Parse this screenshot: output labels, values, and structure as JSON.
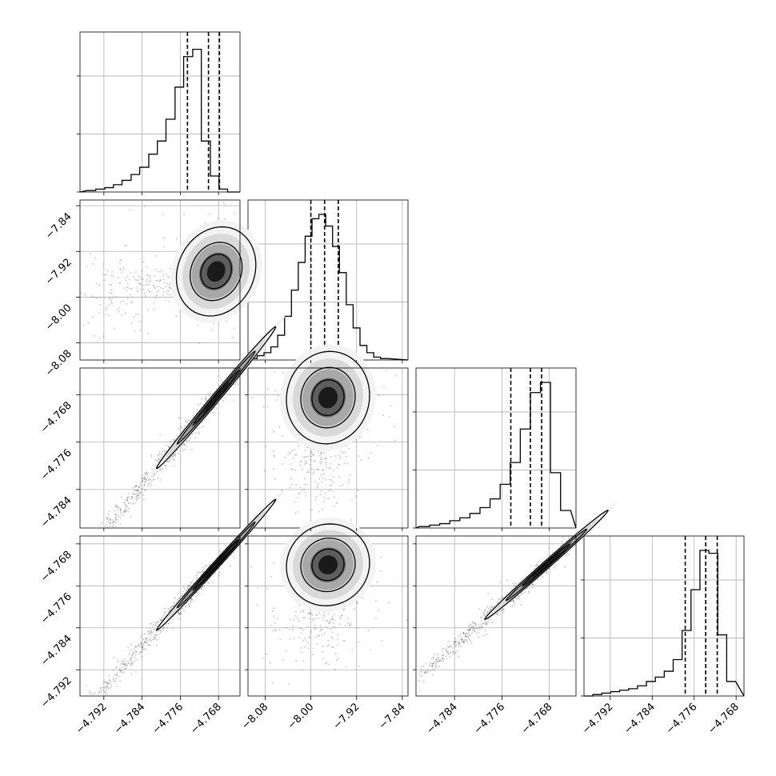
{
  "chart_data": {
    "type": "corner",
    "grid": true,
    "parameters": [
      {
        "range": [
          -4.797,
          -4.7635
        ],
        "ticks": [
          -4.792,
          -4.784,
          -4.776,
          -4.768
        ],
        "tick_labels": [
          "−4.792",
          "−4.784",
          "−4.776",
          "−4.768"
        ],
        "quantiles": [
          -4.7745,
          -4.7701,
          -4.7678
        ],
        "hist_bins": [
          -4.7955,
          -4.7937,
          -4.7918,
          -4.79,
          -4.7882,
          -4.7863,
          -4.7845,
          -4.7826,
          -4.7808,
          -4.779,
          -4.7771,
          -4.7753,
          -4.7734,
          -4.7716,
          -4.7697,
          -4.7679,
          -4.7661,
          -4.7642
        ],
        "hist_counts": [
          0.01,
          0.02,
          0.03,
          0.05,
          0.08,
          0.12,
          0.17,
          0.26,
          0.35,
          0.5,
          0.72,
          0.93,
          0.98,
          0.35,
          0.11,
          0.02,
          0.0
        ]
      },
      {
        "range": [
          -8.11,
          -7.83
        ],
        "ticks": [
          -8.08,
          -8.0,
          -7.92,
          -7.84
        ],
        "tick_labels": [
          "−8.08",
          "−8.00",
          "−7.92",
          "−7.84"
        ],
        "quantiles": [
          -8.0,
          -7.976,
          -7.952
        ],
        "hist_bins": [
          -8.106,
          -8.094,
          -8.082,
          -8.07,
          -8.058,
          -8.046,
          -8.034,
          -8.022,
          -8.01,
          -7.998,
          -7.986,
          -7.974,
          -7.962,
          -7.95,
          -7.938,
          -7.926,
          -7.914,
          -7.902,
          -7.89,
          -7.878,
          -7.866
        ],
        "hist_counts": [
          0.01,
          0.03,
          0.05,
          0.09,
          0.17,
          0.3,
          0.48,
          0.67,
          0.85,
          0.97,
          1.0,
          0.92,
          0.78,
          0.6,
          0.38,
          0.22,
          0.1,
          0.05,
          0.02,
          0.01
        ]
      },
      {
        "range": [
          -4.7905,
          -4.7635
        ],
        "ticks": [
          -4.784,
          -4.776,
          -4.768
        ],
        "tick_labels": [
          "−4.784",
          "−4.776",
          "−4.768"
        ],
        "quantiles": [
          -4.7745,
          -4.7712,
          -4.7693
        ],
        "hist_bins": [
          -4.7899,
          -4.7882,
          -4.7865,
          -4.7848,
          -4.7831,
          -4.7814,
          -4.7797,
          -4.778,
          -4.7763,
          -4.7746,
          -4.7729,
          -4.7712,
          -4.7695,
          -4.7678,
          -4.7661,
          -4.7644
        ],
        "hist_counts": [
          0.01,
          0.02,
          0.03,
          0.05,
          0.07,
          0.1,
          0.14,
          0.2,
          0.3,
          0.45,
          0.68,
          0.93,
          1.0,
          0.38,
          0.12
        ]
      },
      {
        "range": [
          -4.797,
          -4.7665
        ],
        "ticks": [
          -4.792,
          -4.784,
          -4.776,
          -4.768
        ],
        "tick_labels": [
          "−4.792",
          "−4.784",
          "−4.776",
          "−4.768"
        ],
        "quantiles": [
          -4.7777,
          -4.7738,
          -4.7716
        ],
        "hist_bins": [
          -4.797,
          -4.7953,
          -4.7936,
          -4.7919,
          -4.7902,
          -4.7885,
          -4.7868,
          -4.7851,
          -4.7834,
          -4.7817,
          -4.78,
          -4.7783,
          -4.7766,
          -4.7749,
          -4.7732,
          -4.7715,
          -4.7698,
          -4.7681
        ],
        "hist_counts": [
          0.0,
          0.01,
          0.02,
          0.03,
          0.04,
          0.05,
          0.07,
          0.1,
          0.13,
          0.17,
          0.25,
          0.45,
          0.73,
          1.0,
          0.98,
          0.42,
          0.1
        ]
      }
    ],
    "pairs": [
      {
        "row": 1,
        "col": 0,
        "mean": [
          -4.7685,
          -7.955
        ],
        "sd": [
          0.0032,
          0.03
        ],
        "corr": 0.15,
        "tail": [
          -4.795,
          -8.0
        ],
        "tail_sd": [
          0.004,
          0.04
        ]
      },
      {
        "row": 2,
        "col": 0,
        "mean": [
          -4.7685,
          -4.7685
        ],
        "sd": [
          0.0048,
          0.0046
        ],
        "corr": 0.996
      },
      {
        "row": 2,
        "col": 1,
        "mean": [
          -7.97,
          -4.7685
        ],
        "sd": [
          0.028,
          0.003
        ],
        "corr": 0.05,
        "tail": [
          -7.99,
          -4.784
        ],
        "tail_sd": [
          0.04,
          0.004
        ]
      },
      {
        "row": 3,
        "col": 0,
        "mean": [
          -4.7685,
          -4.772
        ],
        "sd": [
          0.0048,
          0.0048
        ],
        "corr": 0.997
      },
      {
        "row": 3,
        "col": 1,
        "mean": [
          -7.97,
          -4.772
        ],
        "sd": [
          0.028,
          0.003
        ],
        "corr": 0.05,
        "tail": [
          -7.99,
          -4.788
        ],
        "tail_sd": [
          0.04,
          0.004
        ]
      },
      {
        "row": 3,
        "col": 2,
        "mean": [
          -4.7685,
          -4.772
        ],
        "sd": [
          0.004,
          0.004
        ],
        "corr": 0.996
      }
    ]
  }
}
